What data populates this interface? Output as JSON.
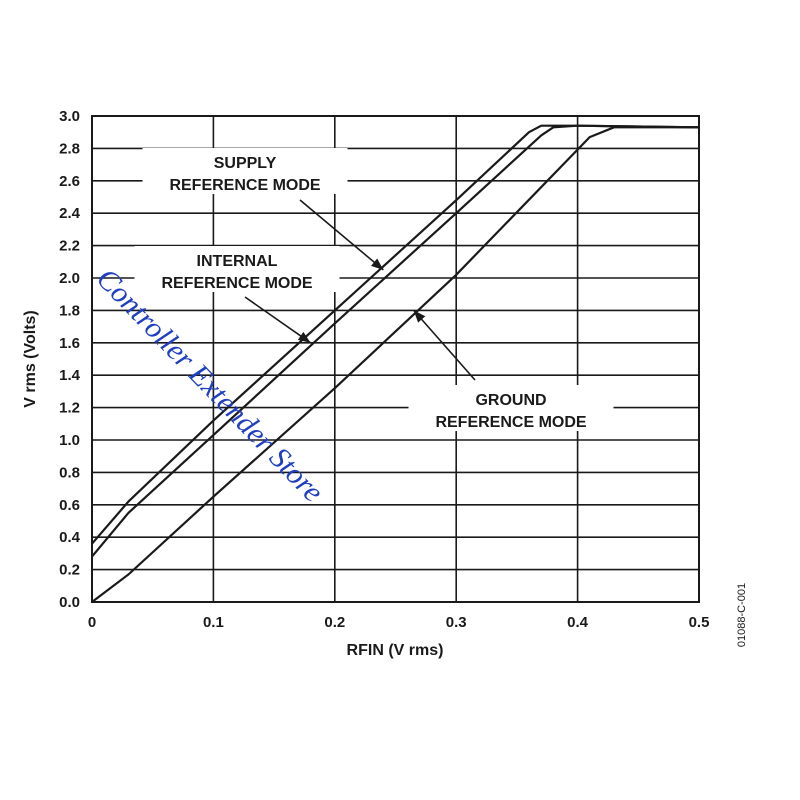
{
  "chart_data": {
    "type": "line",
    "xlabel": "RFIN (V rms)",
    "ylabel": "V rms (Volts)",
    "xlim": [
      0,
      0.5
    ],
    "ylim": [
      0,
      3.0
    ],
    "x_ticks": [
      "0",
      "0.1",
      "0.2",
      "0.3",
      "0.4",
      "0.5"
    ],
    "y_ticks": [
      "0.0",
      "0.2",
      "0.4",
      "0.6",
      "0.8",
      "1.0",
      "1.2",
      "1.4",
      "1.6",
      "1.8",
      "2.0",
      "2.2",
      "2.4",
      "2.6",
      "2.8",
      "3.0"
    ],
    "grid": true,
    "series": [
      {
        "name": "SUPPLY REFERENCE MODE",
        "x": [
          0,
          0.03,
          0.1,
          0.2,
          0.3,
          0.36,
          0.37,
          0.4,
          0.5
        ],
        "y": [
          0.36,
          0.62,
          1.12,
          1.8,
          2.48,
          2.9,
          2.94,
          2.94,
          2.93
        ]
      },
      {
        "name": "INTERNAL REFERENCE MODE",
        "x": [
          0,
          0.03,
          0.1,
          0.2,
          0.3,
          0.37,
          0.38,
          0.4,
          0.5
        ],
        "y": [
          0.28,
          0.55,
          1.03,
          1.72,
          2.4,
          2.88,
          2.93,
          2.94,
          2.93
        ]
      },
      {
        "name": "GROUND REFERENCE MODE",
        "x": [
          0,
          0.03,
          0.1,
          0.2,
          0.3,
          0.41,
          0.43,
          0.5
        ],
        "y": [
          0,
          0.17,
          0.65,
          1.32,
          2.02,
          2.87,
          2.93,
          2.93
        ]
      }
    ],
    "annotations": [
      {
        "lines": [
          "SUPPLY",
          "REFERENCE MODE"
        ],
        "target_series": "SUPPLY REFERENCE MODE",
        "target": [
          0.24,
          2.05
        ]
      },
      {
        "lines": [
          "INTERNAL",
          "REFERENCE MODE"
        ],
        "target_series": "INTERNAL REFERENCE MODE",
        "target": [
          0.18,
          1.6
        ]
      },
      {
        "lines": [
          "GROUND",
          "REFERENCE MODE"
        ],
        "target_series": "GROUND REFERENCE MODE",
        "target": [
          0.265,
          1.8
        ]
      }
    ],
    "figure_id": "01088-C-001"
  },
  "watermark": "Controller Extender Store"
}
